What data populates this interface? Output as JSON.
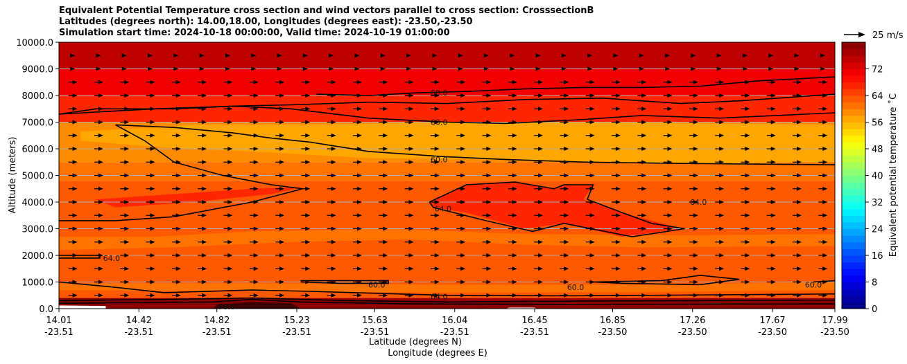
{
  "chart_data": {
    "type": "contourf_with_vectors",
    "title_lines": [
      "Equivalent Potential Temperature cross section and wind vectors parallel to cross section: CrosssectionB",
      "Latitudes (degrees north): 14.00,18.00, Longitudes (degrees east): -23.50,-23.50",
      "Simulation start time: 2024-10-18 00:00:00, Valid time: 2024-10-19 01:00:00"
    ],
    "ylabel": "Altitude (meters)",
    "xlabel_lat": "Latitude (degrees N)",
    "xlabel_lon": "Longitude (degrees E)",
    "ylim": [
      0,
      10000
    ],
    "yticks": [
      0,
      1000,
      2000,
      3000,
      4000,
      5000,
      6000,
      7000,
      8000,
      9000,
      10000
    ],
    "ytick_labels": [
      "0.0",
      "1000.0",
      "2000.0",
      "3000.0",
      "4000.0",
      "5000.0",
      "6000.0",
      "7000.0",
      "8000.0",
      "9000.0",
      "10000.0"
    ],
    "xlim": [
      14.01,
      17.99
    ],
    "xticks_lat": [
      "14.01",
      "14.42",
      "14.82",
      "15.23",
      "15.63",
      "16.04",
      "16.45",
      "16.85",
      "17.26",
      "17.67",
      "17.99"
    ],
    "xticks_lon": [
      "-23.51",
      "-23.51",
      "-23.51",
      "-23.51",
      "-23.51",
      "-23.51",
      "-23.51",
      "-23.50",
      "-23.50",
      "-23.50",
      "-23.50"
    ],
    "xtick_values": [
      14.01,
      14.42,
      14.82,
      15.23,
      15.63,
      16.04,
      16.45,
      16.85,
      17.26,
      17.67,
      17.99
    ],
    "colorbar": {
      "label": "Equivalent potential temperature $^\\circ$C",
      "label_display": "Equivalent potential temperature ˚C",
      "range": [
        0,
        80
      ],
      "ticks": [
        "0",
        "8",
        "16",
        "24",
        "32",
        "40",
        "48",
        "56",
        "64",
        "72"
      ],
      "tick_values": [
        0,
        8,
        16,
        24,
        32,
        40,
        48,
        56,
        64,
        72
      ]
    },
    "vector_key": {
      "label": "25 m/s",
      "speed": 25
    },
    "contour_labels": [
      {
        "text": "68.0",
        "x": 15.96,
        "y": 8100
      },
      {
        "text": "60.0",
        "x": 15.96,
        "y": 7000
      },
      {
        "text": "60.0",
        "x": 15.96,
        "y": 5600
      },
      {
        "text": "64.0",
        "x": 15.98,
        "y": 3750
      },
      {
        "text": "64.0",
        "x": 17.29,
        "y": 4000
      },
      {
        "text": "64.0",
        "x": 14.28,
        "y": 1900
      },
      {
        "text": "60.0",
        "x": 15.64,
        "y": 900
      },
      {
        "text": "60.0",
        "x": 16.66,
        "y": 800
      },
      {
        "text": "60.0",
        "x": 17.88,
        "y": 900
      },
      {
        "text": "64.0",
        "x": 15.96,
        "y": 450
      },
      {
        "text": "76.0",
        "x": 14.87,
        "y": 80
      }
    ],
    "theta_e_bands": [
      {
        "z0": 9000,
        "z1": 10000,
        "value": 74
      },
      {
        "z0": 8000,
        "z1": 9000,
        "value": 70
      },
      {
        "z0": 7000,
        "z1": 8000,
        "value": 66
      },
      {
        "z0": 5500,
        "z1": 7000,
        "value": 58
      },
      {
        "z0": 4800,
        "z1": 5500,
        "value": 61
      },
      {
        "z0": 3000,
        "z1": 4800,
        "value": 63
      },
      {
        "z0": 1000,
        "z1": 3000,
        "value": 62
      },
      {
        "z0": 400,
        "z1": 1000,
        "value": 63
      },
      {
        "z0": 0,
        "z1": 400,
        "value": 76
      }
    ],
    "wind_u_mps": 8
  }
}
